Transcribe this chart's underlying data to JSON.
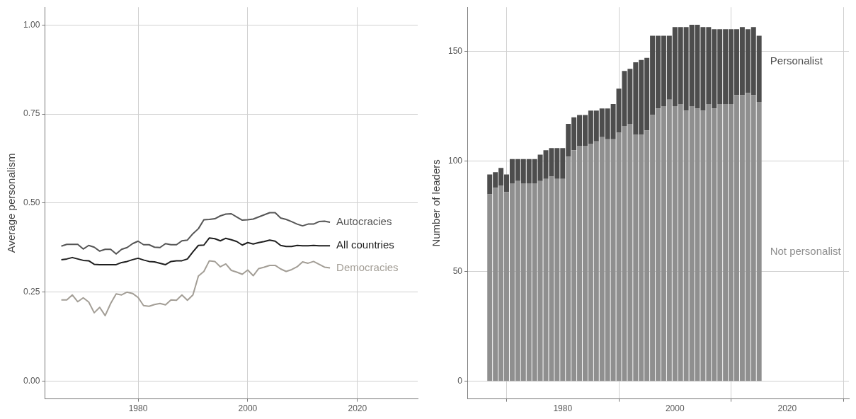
{
  "chart_data": [
    {
      "type": "line",
      "ylabel": "Average personalism",
      "grid": true,
      "x": [
        1966,
        1967,
        1968,
        1969,
        1970,
        1971,
        1972,
        1973,
        1974,
        1975,
        1976,
        1977,
        1978,
        1979,
        1980,
        1981,
        1982,
        1983,
        1984,
        1985,
        1986,
        1987,
        1988,
        1989,
        1990,
        1991,
        1992,
        1993,
        1994,
        1995,
        1996,
        1997,
        1998,
        1999,
        2000,
        2001,
        2002,
        2003,
        2004,
        2005,
        2006,
        2007,
        2008,
        2009,
        2010,
        2011,
        2012,
        2013,
        2014,
        2015
      ],
      "xlim": [
        1963,
        2031
      ],
      "xticks": [
        1980,
        2000,
        2020
      ],
      "ylim": [
        -0.05,
        1.05
      ],
      "yticks": [
        {
          "value": 0,
          "label": "0.00"
        },
        0.25,
        {
          "value": 0.5,
          "label": "0.50"
        },
        0.75,
        {
          "value": 1,
          "label": "1.00"
        }
      ],
      "series": [
        {
          "name": "Autocracies",
          "color": "#555555",
          "values": [
            0.379,
            0.384,
            0.384,
            0.384,
            0.371,
            0.381,
            0.376,
            0.365,
            0.37,
            0.37,
            0.357,
            0.37,
            0.375,
            0.386,
            0.393,
            0.383,
            0.383,
            0.376,
            0.375,
            0.386,
            0.383,
            0.383,
            0.394,
            0.396,
            0.414,
            0.428,
            0.453,
            0.454,
            0.456,
            0.464,
            0.469,
            0.47,
            0.461,
            0.452,
            0.453,
            0.455,
            0.461,
            0.467,
            0.473,
            0.473,
            0.458,
            0.454,
            0.448,
            0.441,
            0.436,
            0.441,
            0.441,
            0.448,
            0.449,
            0.446
          ]
        },
        {
          "name": "All countries",
          "color": "#1f1f1f",
          "values": [
            0.341,
            0.343,
            0.347,
            0.343,
            0.339,
            0.338,
            0.328,
            0.327,
            0.327,
            0.327,
            0.327,
            0.333,
            0.336,
            0.341,
            0.345,
            0.34,
            0.336,
            0.335,
            0.331,
            0.327,
            0.336,
            0.338,
            0.338,
            0.343,
            0.363,
            0.381,
            0.382,
            0.402,
            0.4,
            0.394,
            0.401,
            0.397,
            0.392,
            0.382,
            0.389,
            0.385,
            0.389,
            0.392,
            0.396,
            0.393,
            0.381,
            0.378,
            0.378,
            0.381,
            0.38,
            0.38,
            0.381,
            0.38,
            0.38,
            0.38
          ]
        },
        {
          "name": "Democracies",
          "color": "#a39e96",
          "values": [
            0.228,
            0.228,
            0.242,
            0.223,
            0.234,
            0.222,
            0.192,
            0.207,
            0.184,
            0.218,
            0.245,
            0.242,
            0.25,
            0.246,
            0.235,
            0.212,
            0.21,
            0.215,
            0.218,
            0.214,
            0.228,
            0.227,
            0.242,
            0.227,
            0.242,
            0.295,
            0.308,
            0.338,
            0.336,
            0.321,
            0.329,
            0.311,
            0.306,
            0.3,
            0.312,
            0.296,
            0.316,
            0.32,
            0.325,
            0.325,
            0.315,
            0.308,
            0.313,
            0.321,
            0.335,
            0.331,
            0.336,
            0.328,
            0.32,
            0.318
          ]
        }
      ]
    },
    {
      "type": "bar",
      "stacked": true,
      "ylabel": "Number of leaders",
      "grid": true,
      "x": [
        1967,
        1968,
        1969,
        1970,
        1971,
        1972,
        1973,
        1974,
        1975,
        1976,
        1977,
        1978,
        1979,
        1980,
        1981,
        1982,
        1983,
        1984,
        1985,
        1986,
        1987,
        1988,
        1989,
        1990,
        1991,
        1992,
        1993,
        1994,
        1995,
        1996,
        1997,
        1998,
        1999,
        2000,
        2001,
        2002,
        2003,
        2004,
        2005,
        2006,
        2007,
        2008,
        2009,
        2010,
        2011,
        2012,
        2013,
        2014,
        2015
      ],
      "xlim": [
        1963,
        2031
      ],
      "xticks": [
        1980,
        2000,
        2020
      ],
      "ylim": [
        -8,
        170
      ],
      "yticks": [
        0,
        50,
        100,
        150
      ],
      "series": [
        {
          "name": "Not personalist",
          "color": "#8f8f8f",
          "values": [
            85,
            88,
            89,
            86,
            90,
            91,
            90,
            90,
            90,
            91,
            92,
            93,
            92,
            92,
            102,
            105,
            107,
            107,
            108,
            109,
            111,
            110,
            110,
            113,
            116,
            117,
            112,
            112,
            114,
            121,
            124,
            125,
            128,
            125,
            126,
            123,
            125,
            124,
            123,
            126,
            124,
            126,
            126,
            126,
            130,
            130,
            131,
            130,
            127
          ]
        },
        {
          "name": "Personalist",
          "color": "#4d4d4d",
          "values": [
            9,
            7,
            8,
            8,
            11,
            10,
            11,
            11,
            11,
            12,
            13,
            13,
            14,
            14,
            15,
            15,
            14,
            14,
            15,
            14,
            13,
            14,
            16,
            20,
            25,
            25,
            33,
            34,
            33,
            36,
            33,
            32,
            29,
            36,
            35,
            38,
            37,
            38,
            38,
            35,
            36,
            34,
            34,
            34,
            30,
            31,
            29,
            31,
            30
          ]
        }
      ]
    }
  ]
}
